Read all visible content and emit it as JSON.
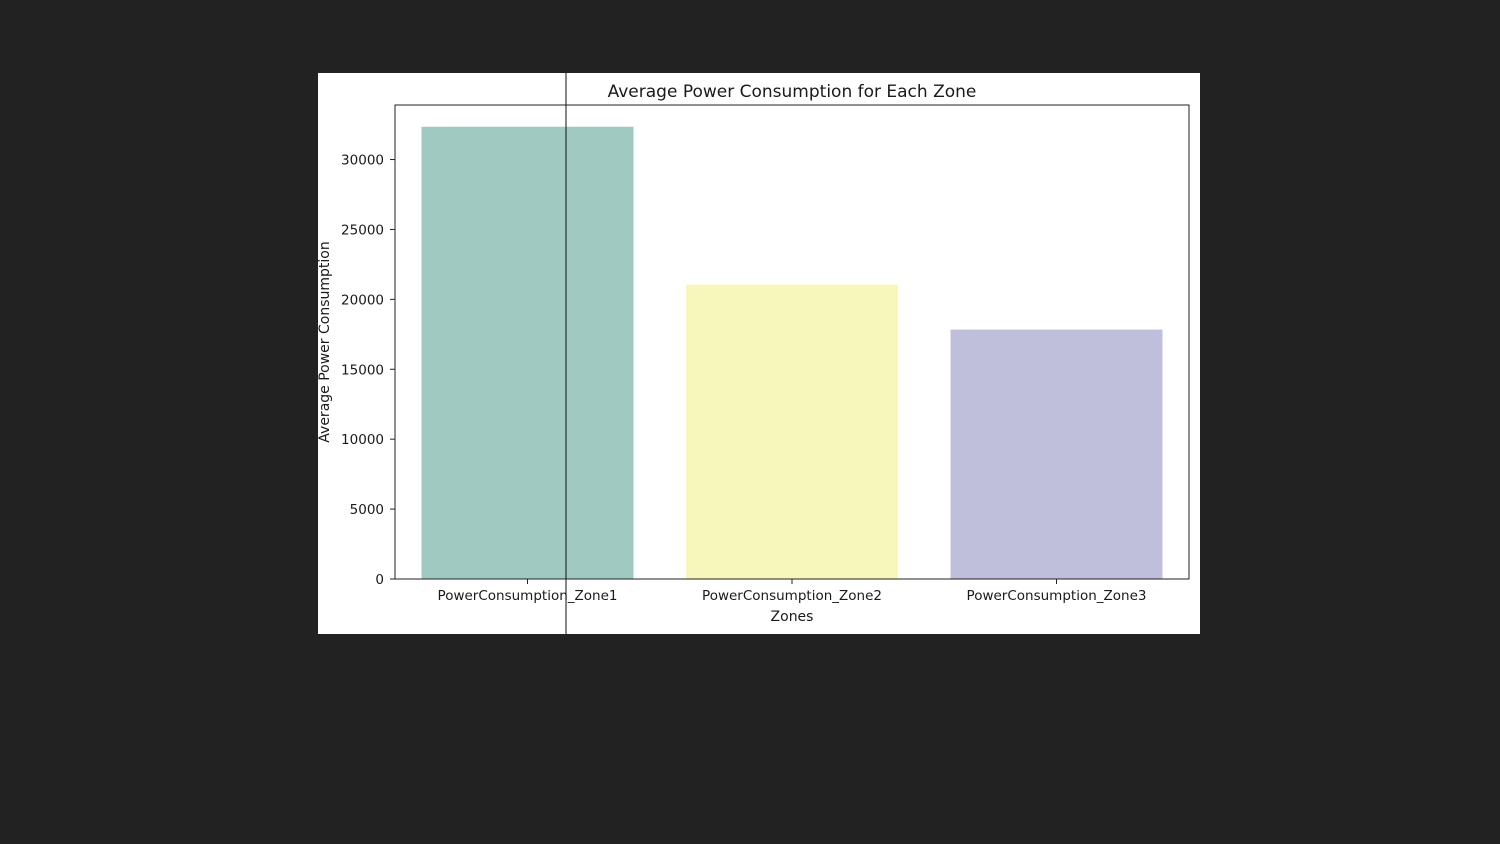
{
  "chart_data": {
    "type": "bar",
    "title": "Average Power Consumption for Each Zone",
    "xlabel": "Zones",
    "ylabel": "Average Power Consumption",
    "categories": [
      "PowerConsumption_Zone1",
      "PowerConsumption_Zone2",
      "PowerConsumption_Zone3"
    ],
    "values": [
      32345,
      21043,
      17835
    ],
    "colors": [
      "#9fc9c1",
      "#f7f6bb",
      "#bfbedb"
    ],
    "ylim": [
      0,
      33900
    ],
    "yticks": [
      0,
      5000,
      10000,
      15000,
      20000,
      25000,
      30000
    ],
    "ytick_labels": [
      "0",
      "5000",
      "10000",
      "15000",
      "20000",
      "25000",
      "30000"
    ],
    "grid": false,
    "legend": "none"
  }
}
